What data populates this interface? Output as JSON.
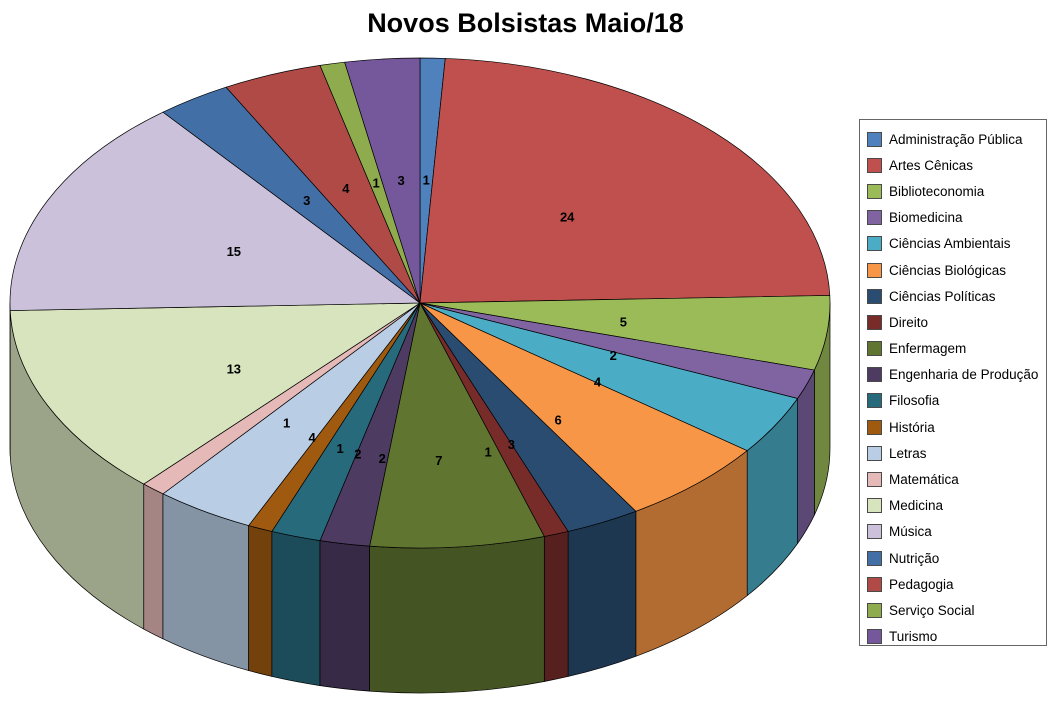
{
  "title": "Novos Bolsistas Maio/18",
  "chart_data": {
    "type": "pie",
    "style": "3d",
    "title": "Novos Bolsistas Maio/18",
    "legend_position": "right",
    "data_labels": "values",
    "start_angle_deg": 0,
    "direction": "clockwise",
    "total": 102,
    "categories": [
      "Administração Pública",
      "Artes Cênicas",
      "Biblioteconomia",
      "Biomedicina",
      "Ciências Ambientais",
      "Ciências Biológicas",
      "Ciências Políticas",
      "Direito",
      "Enfermagem",
      "Engenharia de Produção",
      "Filosofia",
      "História",
      "Letras",
      "Matemática",
      "Medicina",
      "Música",
      "Nutrição",
      "Pedagogia",
      "Serviço Social",
      "Turismo"
    ],
    "values": [
      1,
      24,
      5,
      2,
      4,
      6,
      3,
      1,
      7,
      2,
      2,
      1,
      4,
      1,
      13,
      15,
      3,
      4,
      1,
      3
    ],
    "colors": [
      "#4F81BD",
      "#C0504D",
      "#9BBB59",
      "#8064A2",
      "#4BACC6",
      "#F79646",
      "#2A4C71",
      "#772C2A",
      "#5F7530",
      "#4D3B62",
      "#276A7C",
      "#9F5A10",
      "#B9CDE5",
      "#E5B9B7",
      "#D7E4BD",
      "#CCC1DA",
      "#416FA6",
      "#B04A47",
      "#8EAC4E",
      "#75589B"
    ]
  }
}
